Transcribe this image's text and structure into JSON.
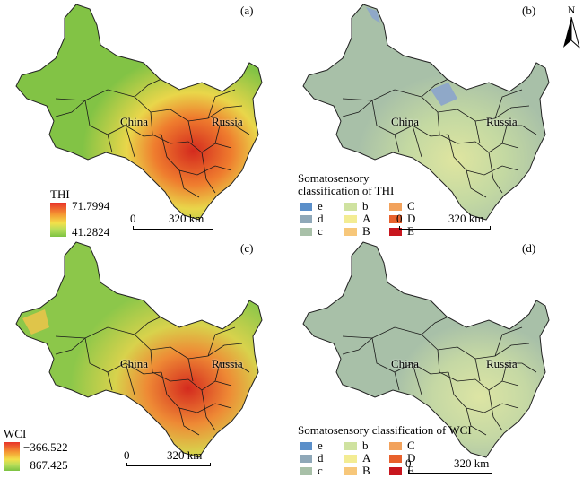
{
  "panels": {
    "a": {
      "label": "(a)",
      "china": "China",
      "russia": "Russia",
      "legend_title": "THI",
      "legend_max": "71.7994",
      "legend_min": "41.2824"
    },
    "b": {
      "label": "(b)",
      "china": "China",
      "russia": "Russia",
      "legend_title_1": "Somatosensory",
      "legend_title_2": "classification of THI"
    },
    "c": {
      "label": "(c)",
      "china": "China",
      "russia": "Russia",
      "legend_title": "WCI",
      "legend_max": "−366.522",
      "legend_min": "−867.425"
    },
    "d": {
      "label": "(d)",
      "china": "China",
      "russia": "Russia",
      "legend_title": "Somatosensory classification of WCI"
    }
  },
  "classes": [
    {
      "code": "e",
      "color": "#5b8fc9"
    },
    {
      "code": "b",
      "color": "#cfe2a0"
    },
    {
      "code": "C",
      "color": "#f2a25c"
    },
    {
      "code": "d",
      "color": "#8fa8b8"
    },
    {
      "code": "A",
      "color": "#f3ec93"
    },
    {
      "code": "D",
      "color": "#e8612c"
    },
    {
      "code": "c",
      "color": "#a8c0a8"
    },
    {
      "code": "B",
      "color": "#f7c77a"
    },
    {
      "code": "E",
      "color": "#c8161e"
    }
  ],
  "scale": {
    "zero": "0",
    "distance": "320 km"
  },
  "north": "N",
  "colors": {
    "thi_high": "#e8332a",
    "thi_mid": "#f3e04a",
    "thi_low": "#7cc242",
    "class_base": "#a8c0a8"
  }
}
